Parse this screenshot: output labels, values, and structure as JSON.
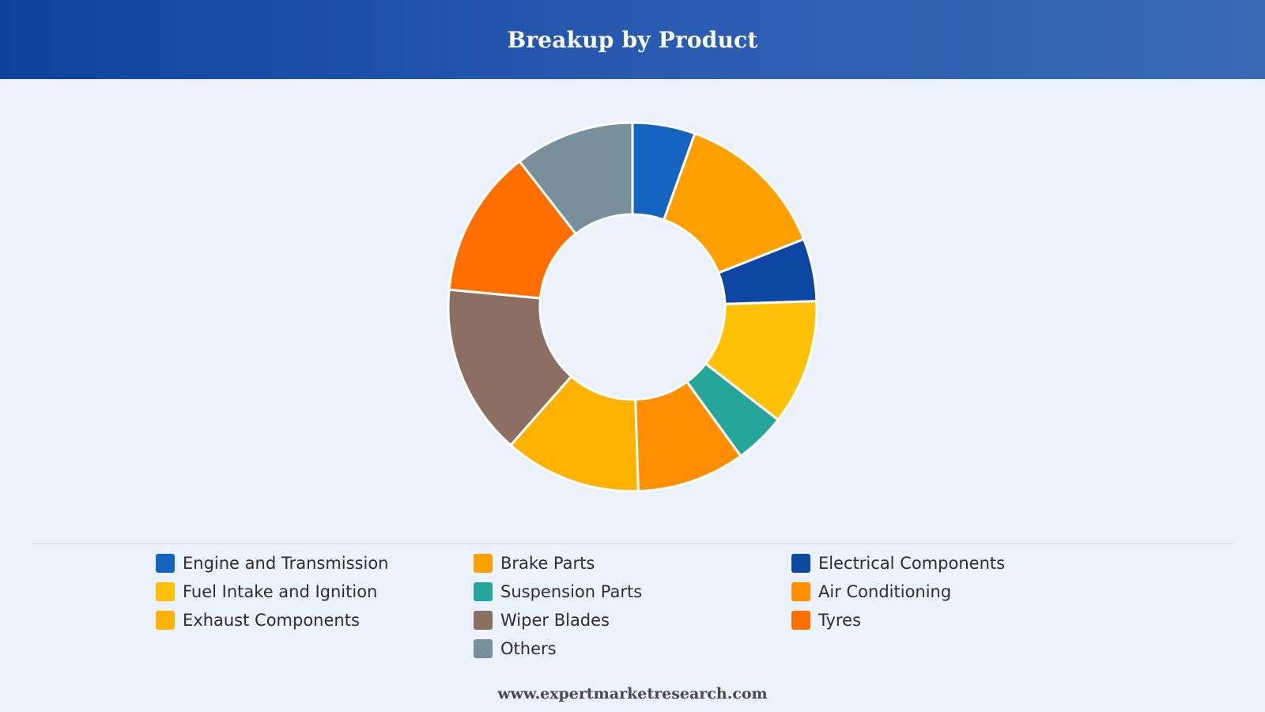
{
  "header": {
    "title": "Breakup by Product"
  },
  "footer": {
    "source": "www.expertmarketresearch.com"
  },
  "chart_data": {
    "type": "pie",
    "title": "Breakup by Product",
    "donut": true,
    "legend_position": "bottom",
    "categories": [
      "Engine and Transmission",
      "Brake Parts",
      "Electrical Components",
      "Fuel Intake and Ignition",
      "Suspension Parts",
      "Air Conditioning",
      "Exhaust Components",
      "Wiper Blades",
      "Tyres",
      "Others"
    ],
    "values": [
      5.5,
      13.5,
      5.5,
      11.0,
      4.5,
      9.5,
      12.0,
      15.0,
      13.0,
      10.5
    ],
    "colors": [
      "#1565c0",
      "#ffa000",
      "#0d47a1",
      "#ffc107",
      "#26a69a",
      "#ff8f00",
      "#ffb300",
      "#8d6e63",
      "#ff6f00",
      "#78909c"
    ]
  }
}
